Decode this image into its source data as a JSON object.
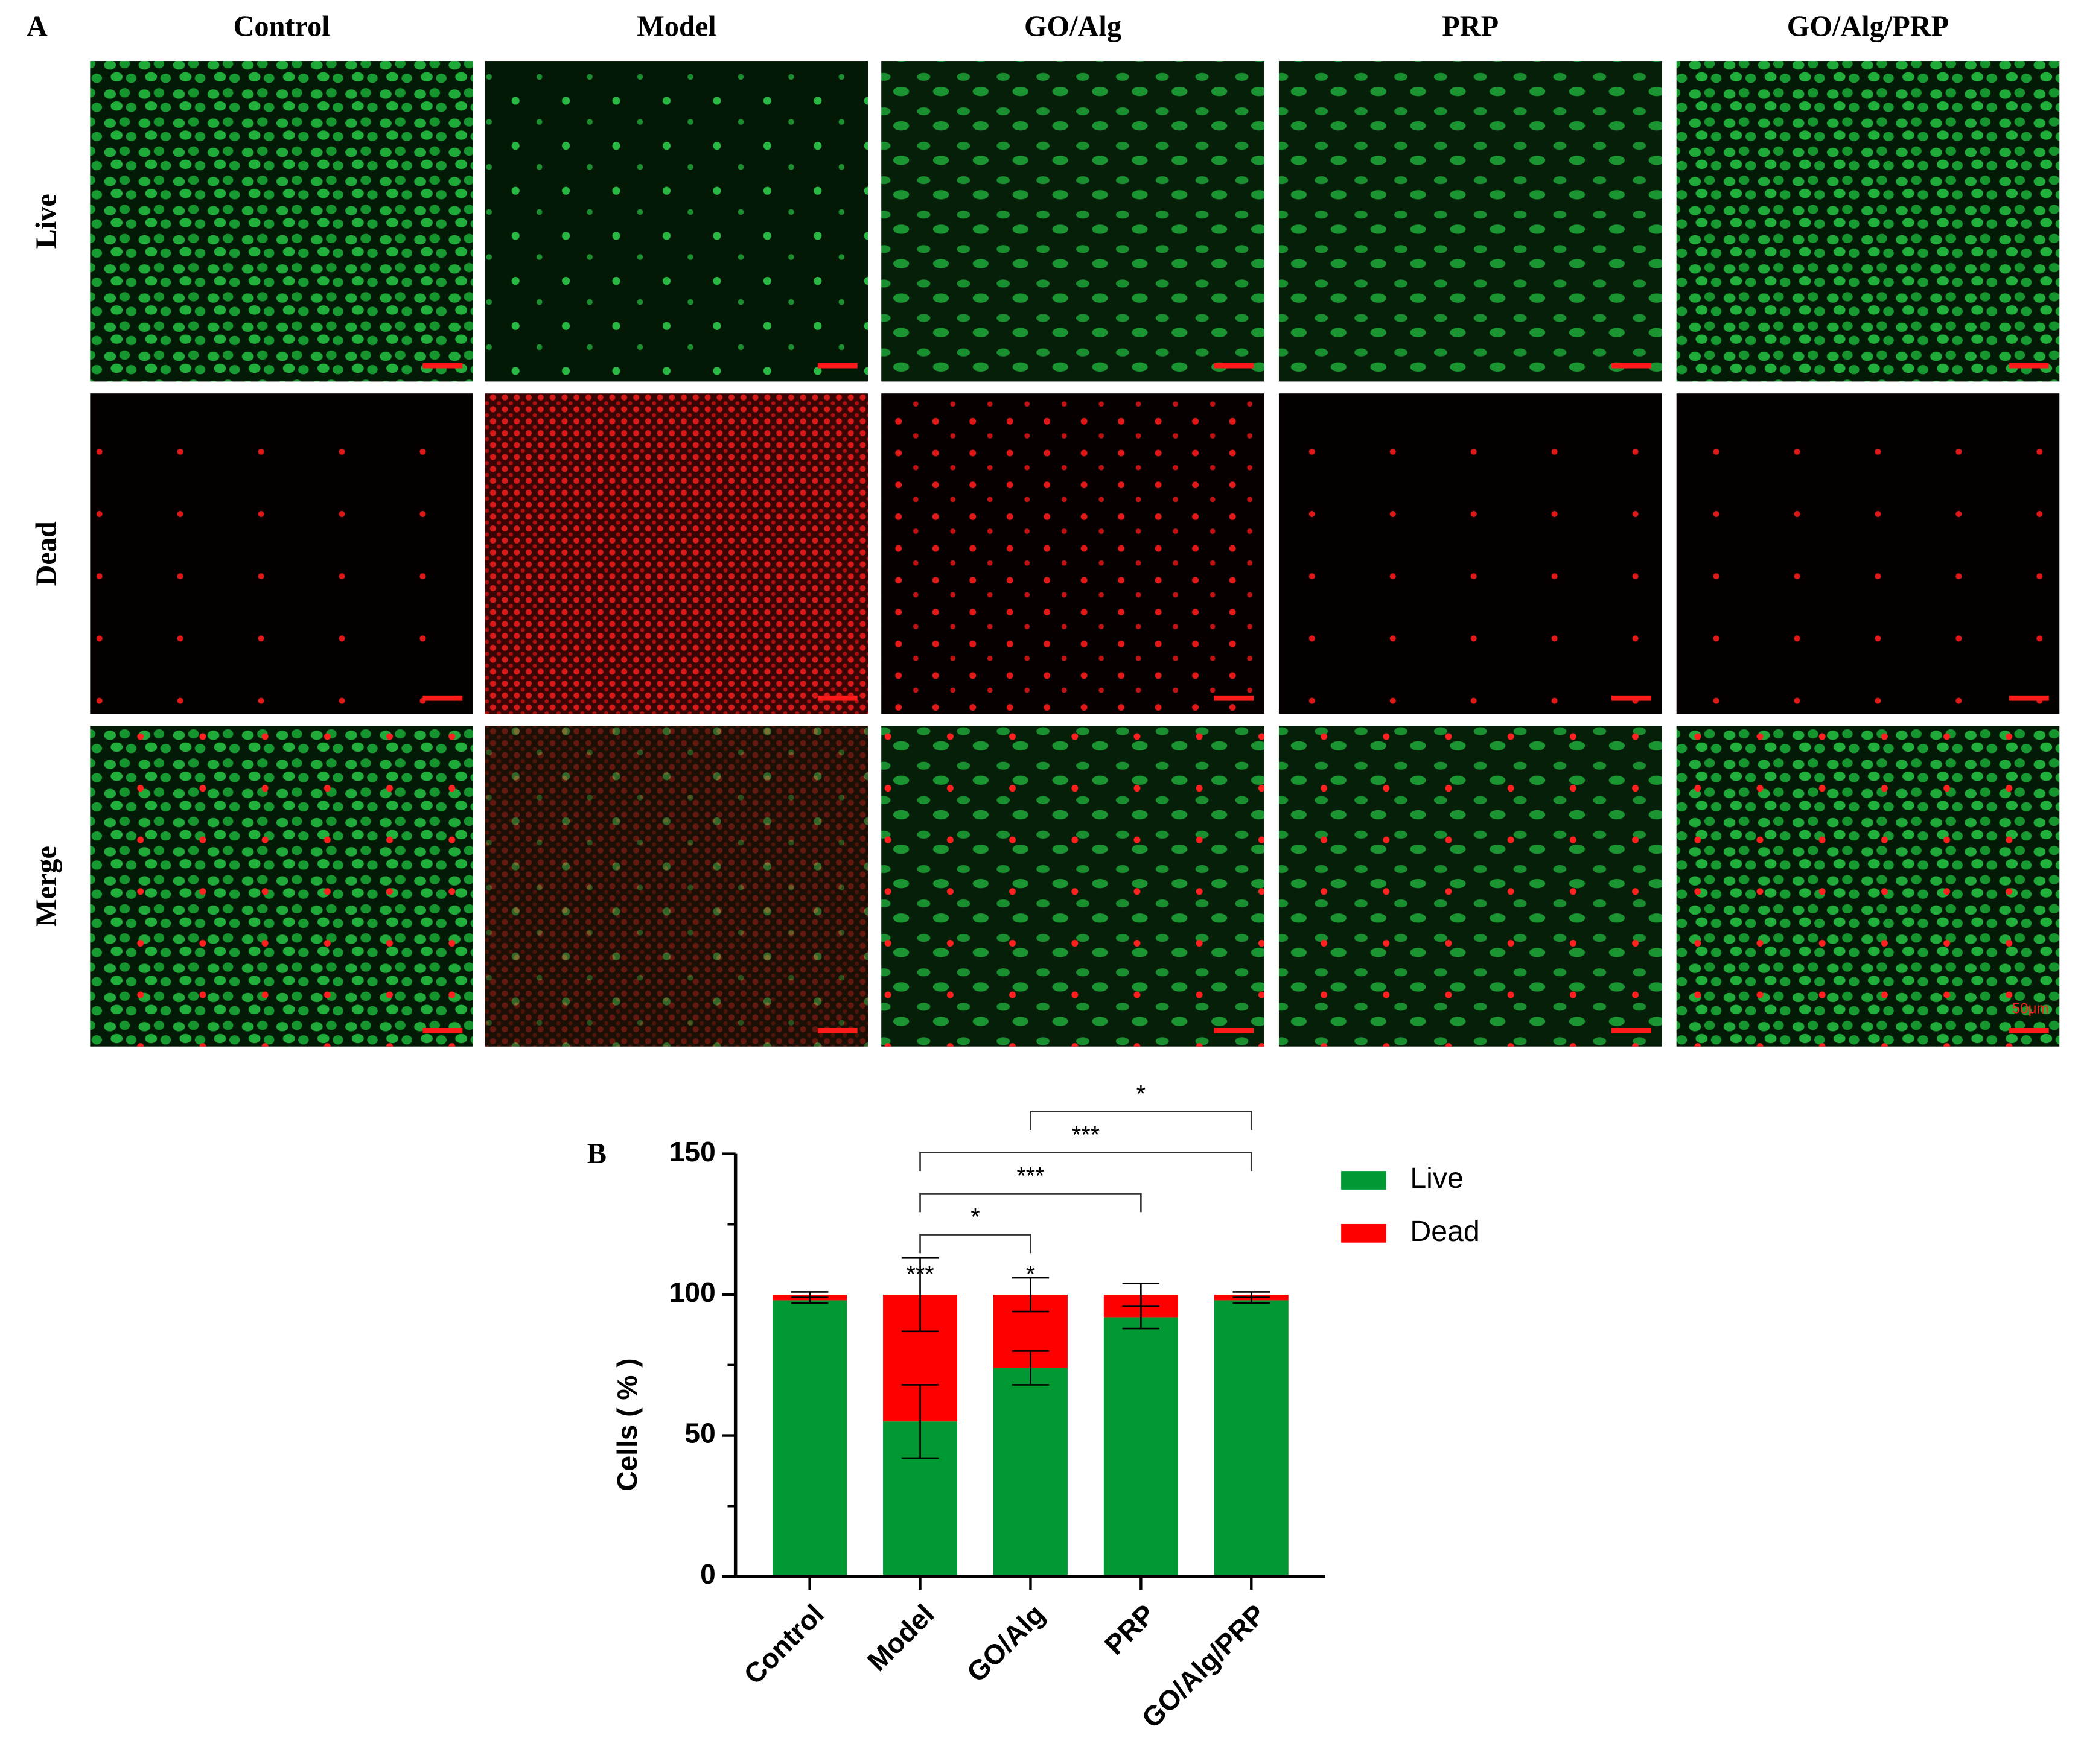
{
  "panel_a": {
    "label": "A",
    "columns": [
      "Control",
      "Model",
      "GO/Alg",
      "PRP",
      "GO/Alg/PRP"
    ],
    "rows": [
      "Live",
      "Dead",
      "Merge"
    ],
    "scale_bar_label": "50μm"
  },
  "panel_b_label": "B",
  "chart_data": {
    "type": "stacked_bar",
    "ylabel": "Cells ( % )",
    "categories": [
      "Control",
      "Model",
      "GO/Alg",
      "PRP",
      "GO/Alg/PRP"
    ],
    "series": [
      {
        "name": "Live",
        "color": "#009933",
        "values": [
          98,
          55,
          74,
          92,
          98
        ],
        "errors": [
          1,
          13,
          6,
          4,
          1
        ]
      },
      {
        "name": "Dead",
        "color": "#ff0000",
        "values": [
          2,
          45,
          26,
          8,
          2
        ],
        "errors": [
          1,
          13,
          6,
          4,
          1
        ]
      }
    ],
    "ylim": [
      0,
      150
    ],
    "yticks": [
      0,
      50,
      100,
      150
    ],
    "bar_labels": [
      null,
      "***",
      "*",
      null,
      null
    ],
    "comparisons": [
      {
        "from": 1,
        "to": 2,
        "label": "*"
      },
      {
        "from": 1,
        "to": 3,
        "label": "***"
      },
      {
        "from": 1,
        "to": 4,
        "label": "***"
      },
      {
        "from": 2,
        "to": 4,
        "label": "*"
      }
    ]
  }
}
